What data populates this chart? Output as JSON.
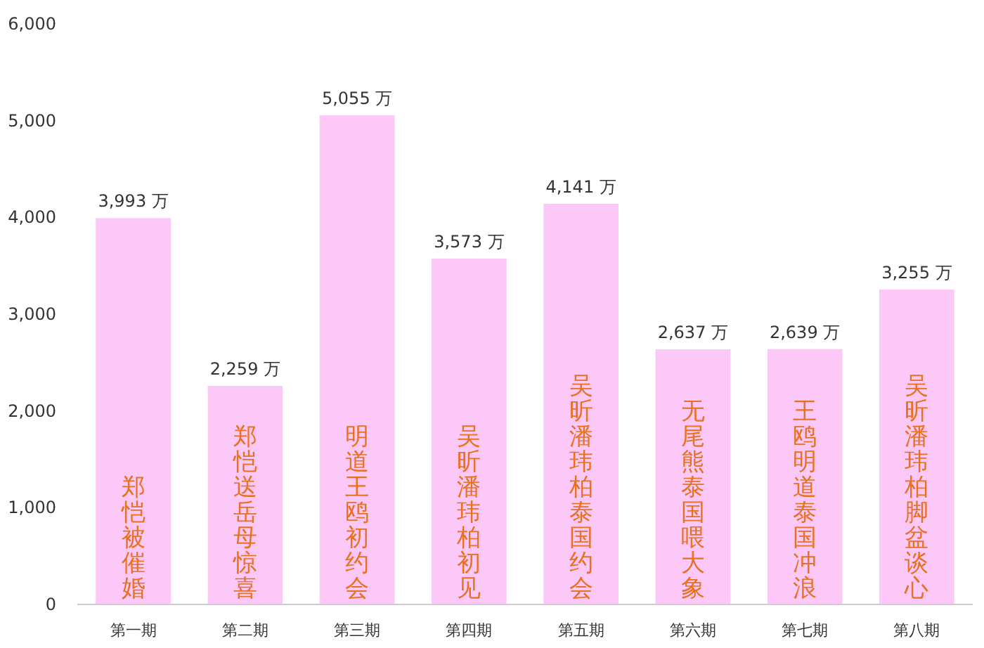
{
  "chart_data": {
    "type": "bar",
    "categories": [
      "第一期",
      "第二期",
      "第三期",
      "第四期",
      "第五期",
      "第六期",
      "第七期",
      "第八期"
    ],
    "values": [
      3993,
      2259,
      5055,
      3573,
      4141,
      2637,
      2639,
      3255
    ],
    "value_labels": [
      "3,993 万",
      "2,259 万",
      "5,055 万",
      "3,573 万",
      "4,141 万",
      "2,637 万",
      "2,639 万",
      "3,255 万"
    ],
    "color": "#fbc8f8",
    "ylim": [
      0,
      6000
    ],
    "yticks": [
      {
        "value": 0,
        "label": "0"
      },
      {
        "value": 1000,
        "label": "1,000"
      },
      {
        "value": 2000,
        "label": "2,000"
      },
      {
        "value": 3000,
        "label": "3,000"
      },
      {
        "value": 4000,
        "label": "4,000"
      },
      {
        "value": 5000,
        "label": "5,000"
      },
      {
        "value": 6000,
        "label": "6,000"
      }
    ],
    "annotations": [
      "郑恺被催婚",
      "郑恺送岳母惊喜",
      "明道王鸥初约会",
      "吴昕潘玮柏初见",
      "吴昕潘玮柏泰国约会",
      "无尾熊泰国喂大象",
      "王鸥明道泰国冲浪",
      "吴昕潘玮柏脚盆谈心"
    ]
  }
}
